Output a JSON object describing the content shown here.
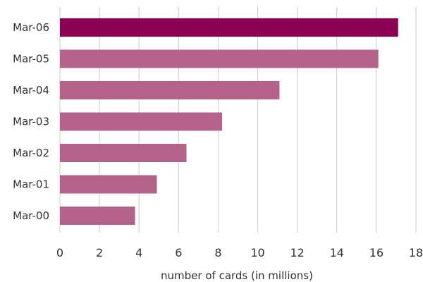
{
  "chart_data": {
    "type": "bar",
    "orientation": "horizontal",
    "categories": [
      "Mar-06",
      "Mar-05",
      "Mar-04",
      "Mar-03",
      "Mar-02",
      "Mar-01",
      "Mar-00"
    ],
    "values": [
      17.1,
      16.1,
      11.1,
      8.2,
      6.4,
      4.9,
      3.8
    ],
    "title": "",
    "xlabel": "number of  cards (in millions)",
    "ylabel": "",
    "xlim": [
      0,
      18
    ],
    "xticks": [
      "0",
      "2",
      "4",
      "6",
      "8",
      "10",
      "12",
      "14",
      "16",
      "18"
    ],
    "grid": "vertical",
    "legend": "none",
    "colors": {
      "highlight": "#8b0050",
      "bar": "#b5628a"
    },
    "highlight_category": "Mar-06"
  }
}
